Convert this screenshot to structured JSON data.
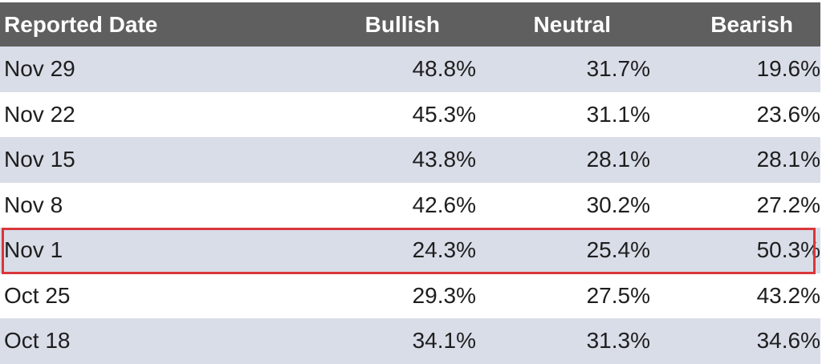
{
  "chart_data": {
    "type": "table",
    "columns": [
      "Reported Date",
      "Bullish",
      "Neutral",
      "Bearish"
    ],
    "rows": [
      {
        "date": "Nov 29",
        "bullish": "48.8%",
        "neutral": "31.7%",
        "bearish": "19.6%"
      },
      {
        "date": "Nov 22",
        "bullish": "45.3%",
        "neutral": "31.1%",
        "bearish": "23.6%"
      },
      {
        "date": "Nov 15",
        "bullish": "43.8%",
        "neutral": "28.1%",
        "bearish": "28.1%"
      },
      {
        "date": "Nov 8",
        "bullish": "42.6%",
        "neutral": "30.2%",
        "bearish": "27.2%"
      },
      {
        "date": "Nov 1",
        "bullish": "24.3%",
        "neutral": "25.4%",
        "bearish": "50.3%"
      },
      {
        "date": "Oct 25",
        "bullish": "29.3%",
        "neutral": "27.5%",
        "bearish": "43.2%"
      },
      {
        "date": "Oct 18",
        "bullish": "34.1%",
        "neutral": "31.3%",
        "bearish": "34.6%"
      }
    ],
    "highlighted_row": "Nov 1"
  },
  "colors": {
    "header_bg": "#5f5f5f",
    "header_text": "#ffffff",
    "shaded_row": "#d9dde8",
    "highlight_border": "#d9363a"
  }
}
